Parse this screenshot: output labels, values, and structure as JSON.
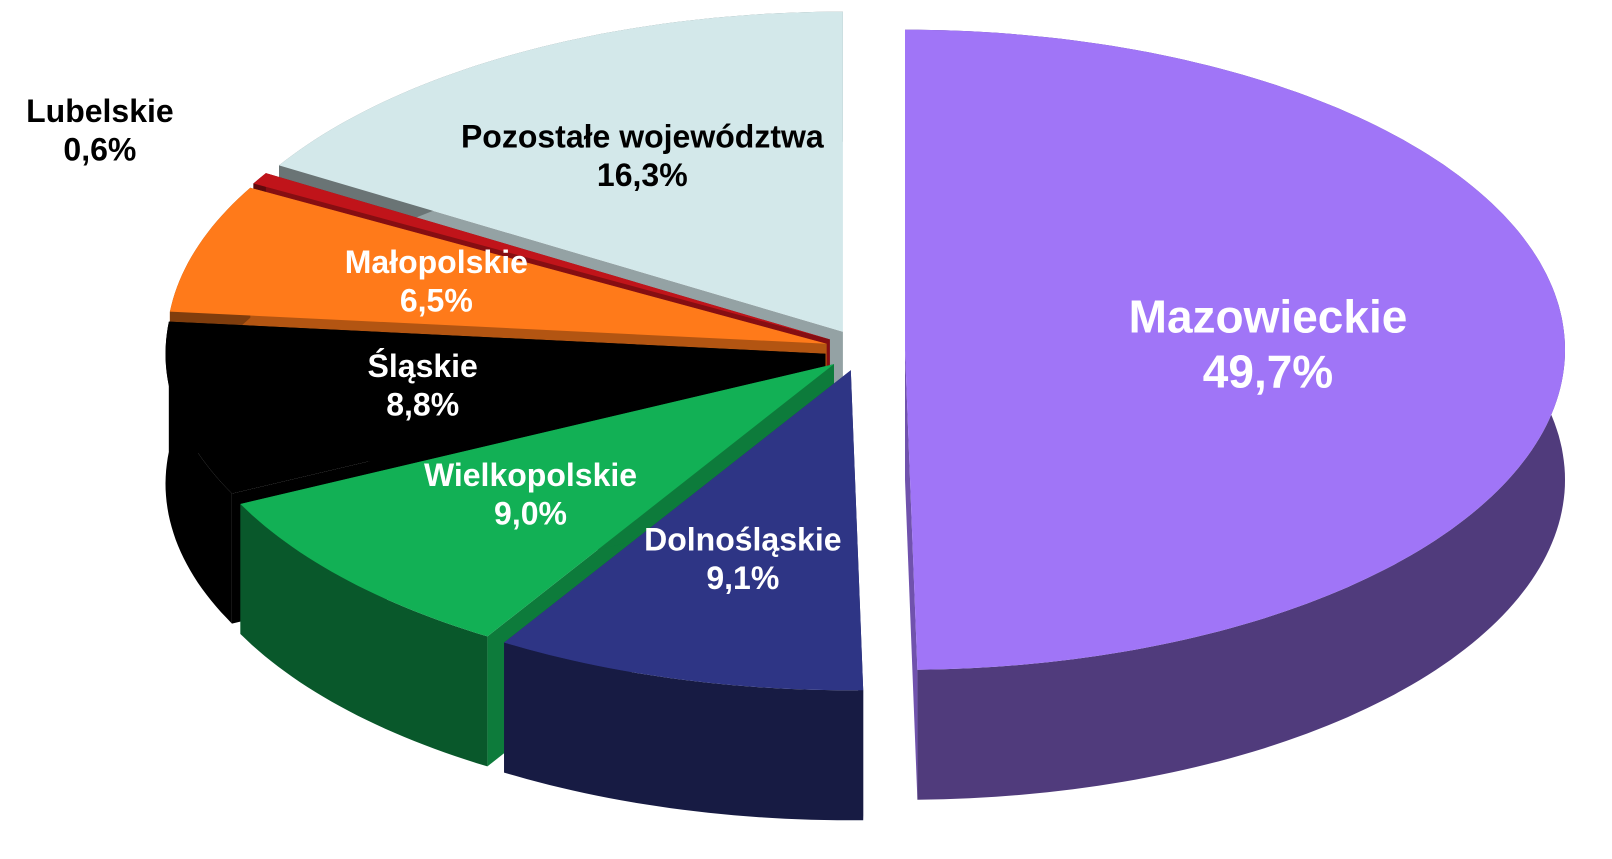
{
  "chart_data": {
    "type": "pie",
    "categories": [
      "Mazowieckie",
      "Dolnośląskie",
      "Wielkopolskie",
      "Śląskie",
      "Małopolskie",
      "Lubelskie",
      "Pozostałe województwa"
    ],
    "values": [
      49.7,
      9.1,
      9.0,
      8.8,
      6.5,
      0.6,
      16.3
    ],
    "value_labels": [
      "49,7%",
      "9,1%",
      "9,0%",
      "8,8%",
      "6,5%",
      "0,6%",
      "16,3%"
    ],
    "colors": [
      "#a075f7",
      "#2e3585",
      "#12b055",
      "#000000",
      "#ff7a1a",
      "#c0141a",
      "#d3e8ea"
    ]
  }
}
